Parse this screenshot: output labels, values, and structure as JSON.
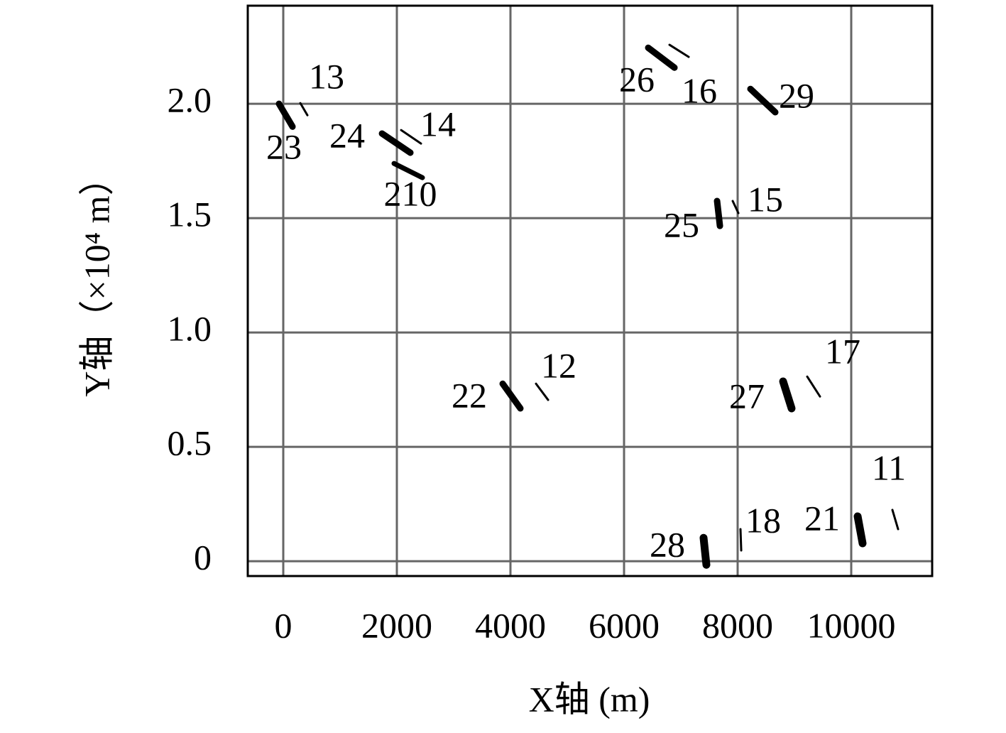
{
  "chart_data": {
    "type": "line",
    "xlabel": "X轴 (m)",
    "ylabel": "Y轴（×10⁴ m）",
    "xlim": [
      -625,
      11425
    ],
    "ylim": [
      -0.065,
      2.429
    ],
    "xticks": [
      0,
      2000,
      4000,
      6000,
      8000,
      10000
    ],
    "yticks": [
      0,
      0.5,
      {
        "value": 1,
        "label": "1.0"
      },
      1.5,
      {
        "value": 2,
        "label": "2.0"
      }
    ],
    "grid": true,
    "series": [
      {
        "name": "23",
        "color": "#000000",
        "line_width": 9,
        "x": [
          -75,
          163
        ],
        "values": [
          2.0,
          1.9
        ]
      },
      {
        "name": "13",
        "color": "#000000",
        "line_width": 3,
        "x": [
          300,
          425
        ],
        "values": [
          2.003,
          1.95
        ]
      },
      {
        "name": "24",
        "color": "#000000",
        "line_width": 9,
        "x": [
          1738,
          2238
        ],
        "values": [
          1.87,
          1.786
        ]
      },
      {
        "name": "14",
        "color": "#000000",
        "line_width": 3,
        "x": [
          2075,
          2425
        ],
        "values": [
          1.885,
          1.826
        ]
      },
      {
        "name": "210",
        "color": "#000000",
        "line_width": 7,
        "x": [
          1950,
          2450
        ],
        "values": [
          1.739,
          1.677
        ]
      },
      {
        "name": "26",
        "color": "#000000",
        "line_width": 9,
        "x": [
          6425,
          6888
        ],
        "values": [
          2.245,
          2.158
        ]
      },
      {
        "name": "16",
        "color": "#000000",
        "line_width": 3,
        "x": [
          6800,
          7138
        ],
        "values": [
          2.258,
          2.205
        ]
      },
      {
        "name": "29",
        "color": "#000000",
        "line_width": 9,
        "x": [
          8225,
          8663
        ],
        "values": [
          2.065,
          1.963
        ]
      },
      {
        "name": "25",
        "color": "#000000",
        "line_width": 9,
        "x": [
          7638,
          7688
        ],
        "values": [
          1.575,
          1.466
        ]
      },
      {
        "name": "15",
        "color": "#000000",
        "line_width": 3,
        "x": [
          7913,
          8013
        ],
        "values": [
          1.575,
          1.522
        ]
      },
      {
        "name": "22",
        "color": "#000000",
        "line_width": 9,
        "x": [
          3863,
          4175
        ],
        "values": [
          0.776,
          0.668
        ]
      },
      {
        "name": "12",
        "color": "#000000",
        "line_width": 3,
        "x": [
          4450,
          4663
        ],
        "values": [
          0.776,
          0.705
        ]
      },
      {
        "name": "27",
        "color": "#000000",
        "line_width": 11,
        "x": [
          8800,
          8950
        ],
        "values": [
          0.786,
          0.668
        ]
      },
      {
        "name": "17",
        "color": "#000000",
        "line_width": 3,
        "x": [
          9225,
          9450
        ],
        "values": [
          0.807,
          0.72
        ]
      },
      {
        "name": "28",
        "color": "#000000",
        "line_width": 11,
        "x": [
          7400,
          7450
        ],
        "values": [
          0.102,
          -0.016
        ]
      },
      {
        "name": "18",
        "color": "#000000",
        "line_width": 3,
        "x": [
          8050,
          8063
        ],
        "values": [
          0.14,
          0.047
        ]
      },
      {
        "name": "21",
        "color": "#000000",
        "line_width": 11,
        "x": [
          10113,
          10200
        ],
        "values": [
          0.196,
          0.078
        ]
      },
      {
        "name": "11",
        "color": "#000000",
        "line_width": 3,
        "x": [
          10725,
          10825
        ],
        "values": [
          0.224,
          0.14
        ]
      }
    ]
  }
}
